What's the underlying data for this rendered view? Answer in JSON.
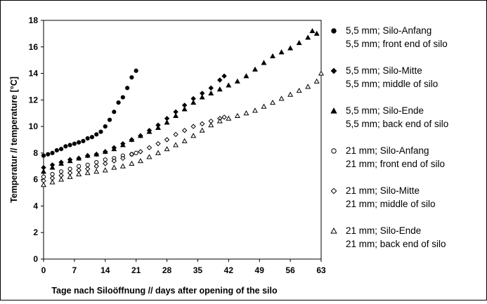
{
  "chart_data": {
    "type": "scatter",
    "xlabel": "Tage nach Siloöffnung // days after opening of the silo",
    "ylabel": "Temperatur // temperature [°C]",
    "xlim": [
      0,
      63
    ],
    "ylim": [
      0,
      18
    ],
    "x_ticks": [
      "0",
      "7",
      "14",
      "21",
      "28",
      "35",
      "42",
      "49",
      "56",
      "63"
    ],
    "y_ticks": [
      "0",
      "2",
      "4",
      "6",
      "8",
      "10",
      "12",
      "14",
      "16",
      "18"
    ],
    "grid": false,
    "legend_position": "right",
    "series": [
      {
        "name": "5,5 mm; Silo-Anfang",
        "name_en": "5,5 mm; front end of silo",
        "marker": "circle-filled",
        "x": [
          0,
          1,
          2,
          3,
          4,
          5,
          6,
          7,
          8,
          9,
          10,
          11,
          12,
          13,
          14,
          15,
          16,
          17,
          18,
          19,
          20,
          21
        ],
        "y": [
          7.8,
          7.9,
          8.0,
          8.2,
          8.3,
          8.5,
          8.6,
          8.7,
          8.8,
          8.9,
          9.1,
          9.2,
          9.4,
          9.6,
          10.0,
          10.5,
          11.1,
          11.8,
          12.2,
          12.9,
          13.7,
          14.2
        ]
      },
      {
        "name": "5,5 mm; Silo-Mitte",
        "name_en": "5,5 mm; middle of silo",
        "marker": "diamond-filled",
        "x": [
          0,
          2,
          4,
          6,
          8,
          10,
          12,
          14,
          16,
          18,
          20,
          22,
          24,
          26,
          28,
          30,
          32,
          34,
          36,
          38,
          40,
          41
        ],
        "y": [
          6.9,
          7.1,
          7.3,
          7.5,
          7.6,
          7.8,
          7.9,
          8.1,
          8.4,
          8.7,
          9.0,
          9.3,
          9.7,
          10.1,
          10.6,
          11.1,
          11.6,
          12.1,
          12.5,
          12.9,
          13.5,
          13.8
        ]
      },
      {
        "name": "5,5 mm; Silo-Ende",
        "name_en": "5,5 mm; back end of silo",
        "marker": "triangle-filled",
        "x": [
          0,
          2,
          4,
          6,
          8,
          10,
          12,
          14,
          16,
          18,
          20,
          22,
          24,
          26,
          28,
          30,
          32,
          34,
          36,
          38,
          40,
          42,
          44,
          46,
          48,
          50,
          52,
          54,
          56,
          58,
          60,
          61,
          62
        ],
        "y": [
          6.6,
          6.9,
          7.2,
          7.4,
          7.6,
          7.8,
          7.9,
          8.1,
          8.3,
          8.6,
          9.0,
          9.3,
          9.6,
          9.9,
          10.3,
          10.8,
          11.3,
          11.8,
          12.2,
          12.5,
          12.8,
          13.1,
          13.4,
          13.8,
          14.3,
          14.8,
          15.3,
          15.6,
          15.9,
          16.3,
          16.7,
          17.2,
          17.0
        ]
      },
      {
        "name": "21 mm; Silo-Anfang",
        "name_en": "21 mm; front end of silo",
        "marker": "circle-open",
        "x": [
          0,
          2,
          4,
          6,
          8,
          10,
          12,
          14,
          16,
          18,
          20,
          21
        ],
        "y": [
          6.2,
          6.4,
          6.6,
          6.8,
          7.0,
          7.1,
          7.3,
          7.5,
          7.6,
          7.8,
          7.9,
          8.0
        ]
      },
      {
        "name": "21 mm; Silo-Mitte",
        "name_en": "21 mm; middle of silo",
        "marker": "diamond-open",
        "x": [
          0,
          2,
          4,
          6,
          8,
          10,
          12,
          14,
          16,
          18,
          20,
          22,
          24,
          26,
          28,
          30,
          32,
          34,
          36,
          38,
          40,
          41
        ],
        "y": [
          5.9,
          6.1,
          6.3,
          6.5,
          6.7,
          6.8,
          7.0,
          7.2,
          7.4,
          7.6,
          7.9,
          8.1,
          8.4,
          8.7,
          9.0,
          9.4,
          9.7,
          10.0,
          10.2,
          10.4,
          10.6,
          10.7
        ]
      },
      {
        "name": "21 mm; Silo-Ende",
        "name_en": "21 mm; back end of silo",
        "marker": "triangle-open",
        "x": [
          0,
          2,
          4,
          6,
          8,
          10,
          12,
          14,
          16,
          18,
          20,
          22,
          24,
          26,
          28,
          30,
          32,
          34,
          36,
          38,
          40,
          42,
          44,
          46,
          48,
          50,
          52,
          54,
          56,
          58,
          60,
          62,
          63
        ],
        "y": [
          5.6,
          5.8,
          6.0,
          6.2,
          6.4,
          6.5,
          6.6,
          6.7,
          6.9,
          7.0,
          7.2,
          7.4,
          7.7,
          8.0,
          8.3,
          8.6,
          8.9,
          9.3,
          9.7,
          10.1,
          10.4,
          10.6,
          10.8,
          11.0,
          11.2,
          11.5,
          11.8,
          12.1,
          12.4,
          12.7,
          13.0,
          13.4,
          14.0
        ]
      }
    ]
  }
}
